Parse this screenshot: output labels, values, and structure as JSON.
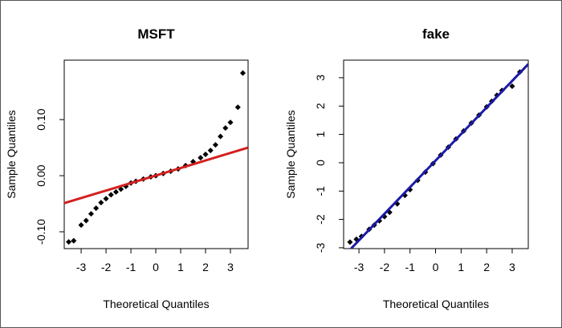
{
  "chart_data": [
    {
      "type": "scatter",
      "title": "MSFT",
      "x_label": "Theoretical Quantiles",
      "y_label": "Sample Quantiles",
      "color": "#000000",
      "x": [
        -3.5,
        -3.3,
        -3.0,
        -2.8,
        -2.6,
        -2.4,
        -2.2,
        -2.0,
        -1.8,
        -1.6,
        -1.4,
        -1.2,
        -1.0,
        -0.8,
        -0.5,
        -0.2,
        0.0,
        0.3,
        0.6,
        0.9,
        1.2,
        1.5,
        1.8,
        2.0,
        2.2,
        2.4,
        2.6,
        2.8,
        3.0,
        3.3,
        3.5
      ],
      "y": [
        -0.118,
        -0.116,
        -0.088,
        -0.08,
        -0.068,
        -0.058,
        -0.048,
        -0.041,
        -0.034,
        -0.029,
        -0.024,
        -0.019,
        -0.013,
        -0.01,
        -0.006,
        -0.002,
        0.0,
        0.004,
        0.008,
        0.012,
        0.018,
        0.025,
        0.032,
        0.038,
        0.045,
        0.055,
        0.07,
        0.085,
        0.095,
        0.122,
        0.183
      ],
      "ref_line": {
        "color": "#d42020",
        "x": [
          -3.68,
          3.71
        ],
        "y": [
          -0.049,
          0.05
        ]
      },
      "xlim": [
        -3.68,
        3.71
      ],
      "ylim": [
        -0.13,
        0.206
      ],
      "xticks": [
        -3,
        -2,
        -1,
        0,
        1,
        2,
        3
      ],
      "yticks": [
        {
          "value": -0.1,
          "label": "-0.10"
        },
        {
          "value": 0,
          "label": "0.00"
        },
        {
          "value": 0.1,
          "label": "0.10"
        }
      ]
    },
    {
      "type": "scatter",
      "title": "fake",
      "x_label": "Theoretical Quantiles",
      "y_label": "Sample Quantiles",
      "color": "#000000",
      "x": [
        -3.35,
        -3.1,
        -2.9,
        -2.6,
        -2.4,
        -2.2,
        -2.0,
        -1.8,
        -1.5,
        -1.2,
        -1.0,
        -0.7,
        -0.4,
        -0.1,
        0.2,
        0.5,
        0.8,
        1.1,
        1.4,
        1.7,
        2.0,
        2.2,
        2.4,
        2.6,
        3.0,
        3.3
      ],
      "y": [
        -2.8,
        -2.7,
        -2.6,
        -2.35,
        -2.2,
        -2.05,
        -1.9,
        -1.75,
        -1.45,
        -1.15,
        -0.95,
        -0.62,
        -0.33,
        -0.03,
        0.27,
        0.55,
        0.84,
        1.12,
        1.4,
        1.68,
        1.97,
        2.17,
        2.38,
        2.55,
        2.7,
        3.2
      ],
      "ref_line": {
        "color": "#1a1aa8",
        "x": [
          -3.31,
          3.63
        ],
        "y": [
          -3.03,
          3.48
        ]
      },
      "xlim": [
        -3.6,
        3.63
      ],
      "ylim": [
        -3.03,
        3.62
      ],
      "xticks": [
        -3,
        -2,
        -1,
        0,
        1,
        2,
        3
      ],
      "yticks": [
        -3,
        -2,
        -1,
        0,
        1,
        2,
        3
      ]
    }
  ]
}
